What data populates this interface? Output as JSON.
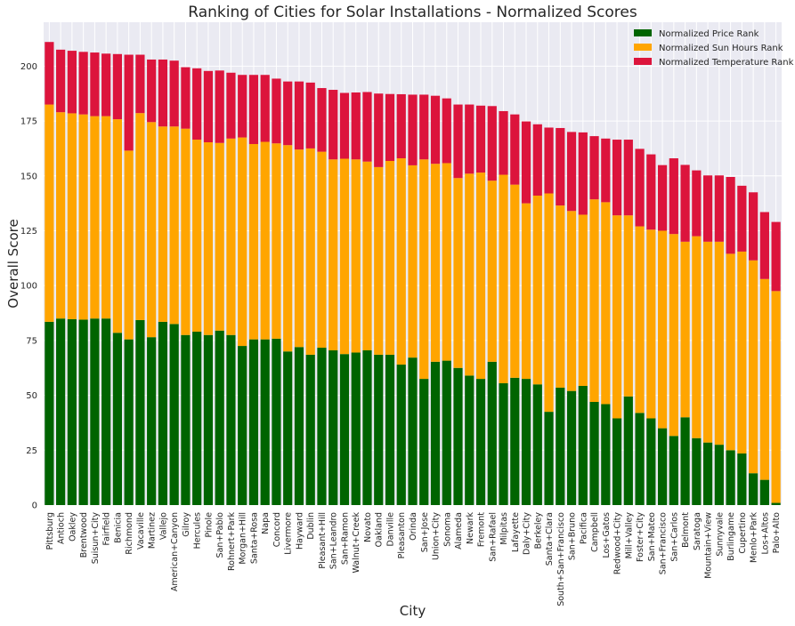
{
  "chart_data": {
    "type": "bar",
    "stacked": true,
    "title": "Ranking of Cities for Solar Installations - Normalized Scores",
    "xlabel": "City",
    "ylabel": "Overall Score",
    "ylim": [
      0,
      220
    ],
    "yticks": [
      0,
      25,
      50,
      75,
      100,
      125,
      150,
      175,
      200
    ],
    "grid": true,
    "legend_position": "top-right",
    "colors": {
      "price": "#006400",
      "sun": "#ffa500",
      "temp": "#dc143c",
      "background": "#eaeaf2",
      "grid": "#ffffff"
    },
    "categories": [
      "Pittsburg",
      "Antioch",
      "Oakley",
      "Brentwood",
      "Suisun+City",
      "Fairfield",
      "Benicia",
      "Richmond",
      "Vacaville",
      "Martinez",
      "Vallejo",
      "American+Canyon",
      "Gilroy",
      "Hercules",
      "Pinole",
      "San+Pablo",
      "Rohnert+Park",
      "Morgan+Hill",
      "Santa+Rosa",
      "Napa",
      "Concord",
      "Livermore",
      "Hayward",
      "Dublin",
      "Pleasant+Hill",
      "San+Leandro",
      "San+Ramon",
      "Walnut+Creek",
      "Novato",
      "Oakland",
      "Danville",
      "Pleasanton",
      "Orinda",
      "San+Jose",
      "Union+City",
      "Sonoma",
      "Alameda",
      "Newark",
      "Fremont",
      "San+Rafael",
      "Milpitas",
      "Lafayette",
      "Daly+City",
      "Berkeley",
      "Santa+Clara",
      "South+San+Francisco",
      "San+Bruno",
      "Pacifica",
      "Campbell",
      "Los+Gatos",
      "Redwood+City",
      "Mill+Valley",
      "Foster+City",
      "San+Mateo",
      "San+Francisco",
      "San+Carlos",
      "Belmont",
      "Saratoga",
      "Mountain+View",
      "Sunnyvale",
      "Burlingame",
      "Cupertino",
      "Menlo+Park",
      "Los+Altos",
      "Palo+Alto"
    ],
    "series": [
      {
        "name": "Normalized Price Rank",
        "values": [
          83.5,
          85,
          84.7,
          84.5,
          85,
          85,
          78.5,
          75.5,
          84.3,
          76.5,
          83.5,
          82.5,
          77.5,
          79,
          77.5,
          79.5,
          77.5,
          72.5,
          75.5,
          75.5,
          75.8,
          70,
          72,
          68.5,
          71.7,
          70.5,
          68.8,
          69.5,
          70.5,
          68.5,
          68.5,
          64,
          67.2,
          57.5,
          65.3,
          65.8,
          62.5,
          59,
          57.5,
          65.3,
          55.5,
          58,
          57.5,
          55,
          42.5,
          53.5,
          52,
          54.3,
          47,
          46,
          39.5,
          49.5,
          42,
          39.5,
          35,
          31.5,
          40,
          30.5,
          28.5,
          27.5,
          25,
          23.5,
          14.5,
          11.5,
          1
        ]
      },
      {
        "name": "Normalized Sun Hours Rank",
        "values": [
          99,
          94,
          93.8,
          93.5,
          92.2,
          92.2,
          97.3,
          86,
          94.3,
          98,
          89,
          90,
          94,
          87.5,
          87.8,
          85.5,
          89.5,
          95,
          89,
          90,
          89,
          94,
          90,
          94,
          89.3,
          87,
          89,
          88,
          86,
          85.5,
          88.3,
          94,
          87.6,
          100,
          90.2,
          90,
          86.5,
          92,
          94,
          82.5,
          95,
          88,
          80,
          86,
          99.5,
          83,
          82,
          78,
          92.3,
          92,
          92.5,
          82.5,
          85,
          86,
          90,
          92,
          80,
          92,
          91.5,
          92.5,
          89.5,
          92,
          97,
          91.5,
          96.5
        ]
      },
      {
        "name": "Normalized Temperature Rank",
        "values": [
          28.5,
          28.5,
          28.5,
          28.5,
          29,
          28.5,
          29.7,
          43.7,
          26.6,
          28.5,
          30.5,
          30,
          28,
          32.5,
          32.5,
          33,
          30,
          28.5,
          31.5,
          30.5,
          29.5,
          29,
          31,
          30,
          29,
          31.7,
          30,
          30.5,
          31.7,
          33.5,
          30.5,
          29.2,
          32.2,
          29.5,
          31,
          29.5,
          33.5,
          31.5,
          30.5,
          34,
          29,
          32,
          37.3,
          32.5,
          30,
          35.3,
          36,
          37.5,
          28.8,
          29,
          34.5,
          34.5,
          35.3,
          34.3,
          29.9,
          34.5,
          35,
          30,
          30.2,
          30.2,
          35,
          30,
          31,
          30.5,
          31.5
        ]
      }
    ]
  }
}
